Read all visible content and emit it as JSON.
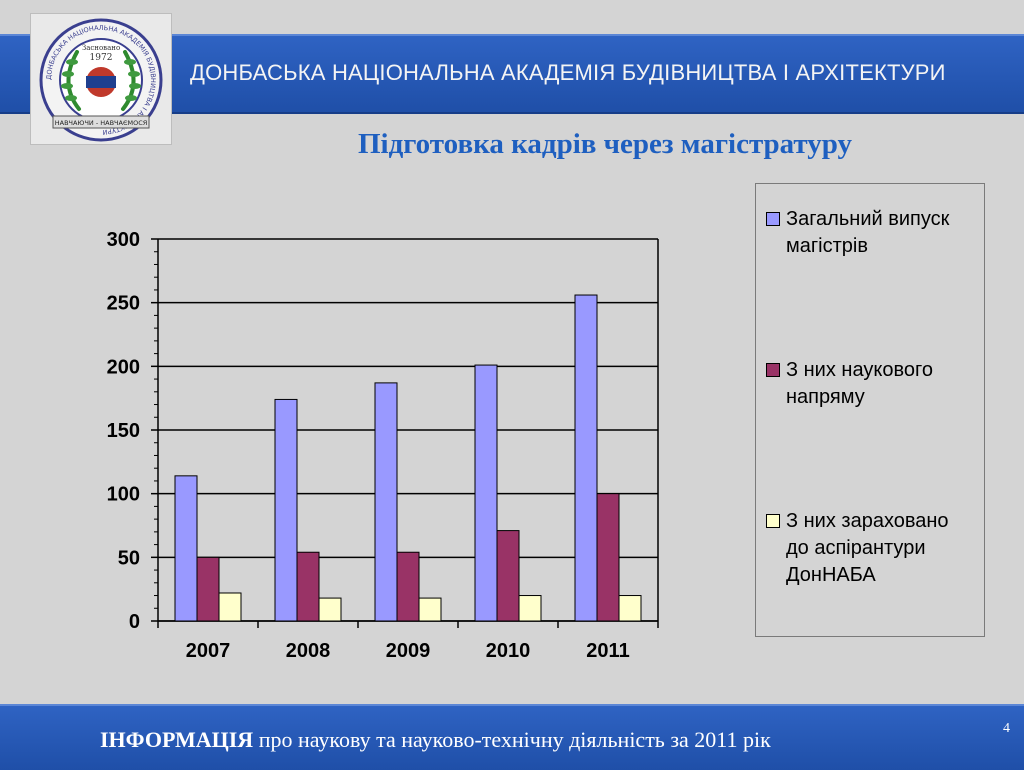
{
  "header": {
    "title": "ДОНБАСЬКА НАЦІОНАЛЬНА АКАДЕМІЯ БУДІВНИЦТВА І АРХІТЕКТУРИ",
    "logo": {
      "ring_text": "ДОНБАСЬКА НАЦІОНАЛЬНА АКАДЕМІЯ БУДІВНИЦТВА І АРХІТЕКТУРИ",
      "founded_label": "Засновано",
      "founded_year": "1972",
      "ribbon_text": "НАВЧАЮЧИ - НАВЧАЄМОСЯ"
    }
  },
  "subtitle": "Підготовка кадрів через магістратуру",
  "chart_data": {
    "type": "bar",
    "categories": [
      "2007",
      "2008",
      "2009",
      "2010",
      "2011"
    ],
    "series": [
      {
        "name": "Загальний випуск магістрів",
        "values": [
          114,
          174,
          187,
          201,
          256
        ],
        "color": "#9999ff"
      },
      {
        "name": "З них наукового напряму",
        "values": [
          50,
          54,
          54,
          71,
          100
        ],
        "color": "#993366"
      },
      {
        "name": "З них зараховано до аспірантури ДонНАБА",
        "values": [
          22,
          18,
          18,
          20,
          20
        ],
        "color": "#ffffcc"
      }
    ],
    "y_ticks": [
      "0",
      "50",
      "100",
      "150",
      "200",
      "250",
      "300"
    ],
    "ylim": [
      0,
      300
    ],
    "grid": true,
    "legend_position": "right",
    "title": "",
    "xlabel": "",
    "ylabel": ""
  },
  "footer": {
    "text_bold": "ІНФОРМАЦІЯ",
    "text_rest": " про наукову та науково-технічну діяльність за 2011 рік",
    "page_number": "4"
  },
  "colors": {
    "header_blue": "#2a5cbc",
    "subtitle_blue": "#1e5fc0",
    "background": "#d4d4d4"
  }
}
